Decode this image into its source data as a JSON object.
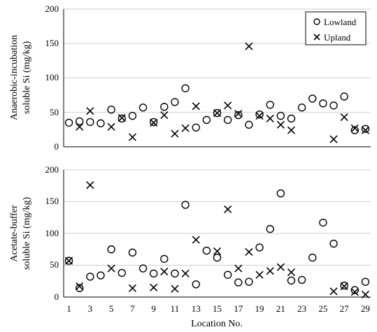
{
  "chart_data": [
    {
      "type": "scatter",
      "ylabel_lines": [
        "Anaerobic-incubation",
        "soluble Si (mg/kg)"
      ],
      "ylim": [
        0,
        200
      ],
      "yticks": [
        0,
        50,
        100,
        150,
        200
      ],
      "grid": true,
      "legend": "top-right",
      "series": [
        {
          "name": "Lowland",
          "marker": "circle",
          "points": [
            {
              "x": 1,
              "y": 35
            },
            {
              "x": 2,
              "y": 37
            },
            {
              "x": 3,
              "y": 36
            },
            {
              "x": 4,
              "y": 34
            },
            {
              "x": 5,
              "y": 54
            },
            {
              "x": 6,
              "y": 41
            },
            {
              "x": 7,
              "y": 45
            },
            {
              "x": 8,
              "y": 57
            },
            {
              "x": 9,
              "y": 36
            },
            {
              "x": 10,
              "y": 58
            },
            {
              "x": 11,
              "y": 65
            },
            {
              "x": 12,
              "y": 85
            },
            {
              "x": 13,
              "y": 28
            },
            {
              "x": 14,
              "y": 39
            },
            {
              "x": 15,
              "y": 49
            },
            {
              "x": 16,
              "y": 39
            },
            {
              "x": 17,
              "y": 46
            },
            {
              "x": 18,
              "y": 32
            },
            {
              "x": 19,
              "y": 47
            },
            {
              "x": 20,
              "y": 61
            },
            {
              "x": 21,
              "y": 45
            },
            {
              "x": 22,
              "y": 41
            },
            {
              "x": 23,
              "y": 57
            },
            {
              "x": 24,
              "y": 70
            },
            {
              "x": 25,
              "y": 63
            },
            {
              "x": 26,
              "y": 60
            },
            {
              "x": 27,
              "y": 73
            },
            {
              "x": 28,
              "y": 24
            },
            {
              "x": 29,
              "y": 26
            }
          ]
        },
        {
          "name": "Upland",
          "marker": "cross",
          "points": [
            {
              "x": 2,
              "y": 29
            },
            {
              "x": 3,
              "y": 52
            },
            {
              "x": 5,
              "y": 29
            },
            {
              "x": 6,
              "y": 42
            },
            {
              "x": 7,
              "y": 14
            },
            {
              "x": 9,
              "y": 35
            },
            {
              "x": 10,
              "y": 46
            },
            {
              "x": 11,
              "y": 19
            },
            {
              "x": 12,
              "y": 27
            },
            {
              "x": 13,
              "y": 59
            },
            {
              "x": 15,
              "y": 49
            },
            {
              "x": 16,
              "y": 60
            },
            {
              "x": 17,
              "y": 48
            },
            {
              "x": 18,
              "y": 146
            },
            {
              "x": 19,
              "y": 45
            },
            {
              "x": 20,
              "y": 41
            },
            {
              "x": 21,
              "y": 32
            },
            {
              "x": 22,
              "y": 24
            },
            {
              "x": 26,
              "y": 11
            },
            {
              "x": 27,
              "y": 43
            },
            {
              "x": 28,
              "y": 27
            },
            {
              "x": 29,
              "y": 24
            }
          ]
        }
      ]
    },
    {
      "type": "scatter",
      "ylabel_lines": [
        "Acetate-buffer",
        "soluble Si (mg/kg)"
      ],
      "xlabel": "Location No.",
      "xlim": [
        0.5,
        29.5
      ],
      "xticks": [
        1,
        3,
        5,
        7,
        9,
        11,
        13,
        15,
        17,
        19,
        21,
        23,
        25,
        27,
        29
      ],
      "ylim": [
        0,
        200
      ],
      "yticks": [
        0,
        50,
        100,
        150,
        200
      ],
      "grid": true,
      "series": [
        {
          "name": "Lowland",
          "marker": "circle",
          "points": [
            {
              "x": 1,
              "y": 57
            },
            {
              "x": 2,
              "y": 14
            },
            {
              "x": 3,
              "y": 32
            },
            {
              "x": 4,
              "y": 34
            },
            {
              "x": 5,
              "y": 75
            },
            {
              "x": 6,
              "y": 38
            },
            {
              "x": 7,
              "y": 70
            },
            {
              "x": 8,
              "y": 45
            },
            {
              "x": 9,
              "y": 37
            },
            {
              "x": 10,
              "y": 60
            },
            {
              "x": 11,
              "y": 37
            },
            {
              "x": 12,
              "y": 145
            },
            {
              "x": 13,
              "y": 20
            },
            {
              "x": 14,
              "y": 73
            },
            {
              "x": 15,
              "y": 62
            },
            {
              "x": 16,
              "y": 35
            },
            {
              "x": 17,
              "y": 23
            },
            {
              "x": 18,
              "y": 24
            },
            {
              "x": 19,
              "y": 78
            },
            {
              "x": 20,
              "y": 107
            },
            {
              "x": 21,
              "y": 163
            },
            {
              "x": 22,
              "y": 26
            },
            {
              "x": 23,
              "y": 27
            },
            {
              "x": 24,
              "y": 62
            },
            {
              "x": 25,
              "y": 117
            },
            {
              "x": 26,
              "y": 84
            },
            {
              "x": 27,
              "y": 18
            },
            {
              "x": 28,
              "y": 11
            },
            {
              "x": 29,
              "y": 24
            }
          ]
        },
        {
          "name": "Upland",
          "marker": "cross",
          "points": [
            {
              "x": 1,
              "y": 57
            },
            {
              "x": 2,
              "y": 17
            },
            {
              "x": 3,
              "y": 176
            },
            {
              "x": 5,
              "y": 45
            },
            {
              "x": 7,
              "y": 14
            },
            {
              "x": 9,
              "y": 15
            },
            {
              "x": 10,
              "y": 40
            },
            {
              "x": 11,
              "y": 13
            },
            {
              "x": 12,
              "y": 37
            },
            {
              "x": 13,
              "y": 90
            },
            {
              "x": 15,
              "y": 72
            },
            {
              "x": 16,
              "y": 138
            },
            {
              "x": 17,
              "y": 45
            },
            {
              "x": 18,
              "y": 71
            },
            {
              "x": 19,
              "y": 35
            },
            {
              "x": 20,
              "y": 41
            },
            {
              "x": 21,
              "y": 47
            },
            {
              "x": 22,
              "y": 39
            },
            {
              "x": 26,
              "y": 9
            },
            {
              "x": 27,
              "y": 17
            },
            {
              "x": 28,
              "y": 8
            },
            {
              "x": 29,
              "y": 4
            }
          ]
        }
      ]
    }
  ]
}
